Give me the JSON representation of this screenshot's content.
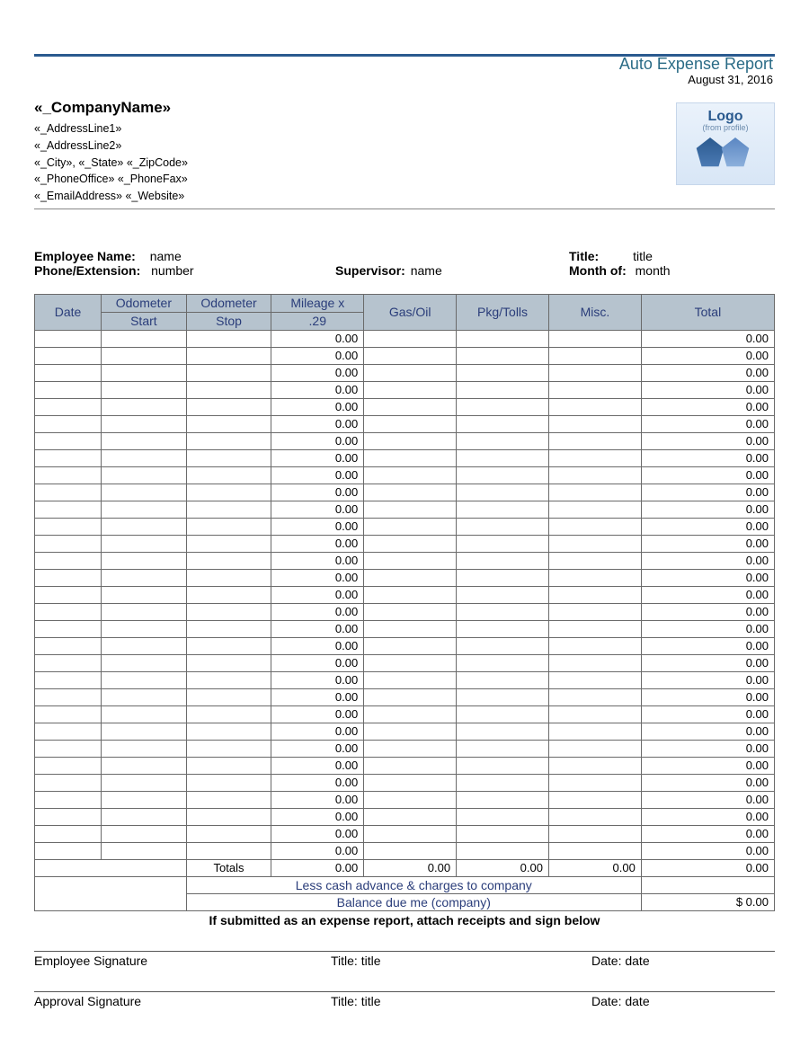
{
  "header": {
    "title": "Auto Expense Report",
    "date": "August 31, 2016",
    "title_color": "#2a6b86",
    "rule_color": "#2a5a8f"
  },
  "company": {
    "name": "«_CompanyName»",
    "address1": "«_AddressLine1»",
    "address2": "«_AddressLine2»",
    "city_state_zip": "«_City», «_State» «_ZipCode»",
    "phones": "«_PhoneOffice» «_PhoneFax»",
    "email_web": "«_EmailAddress» «_Website»"
  },
  "logo": {
    "text": "Logo",
    "subtext": "(from profile)"
  },
  "info": {
    "employee_name_label": "Employee Name:",
    "employee_name": "name",
    "phone_ext_label": "Phone/Extension:",
    "phone_ext": "number",
    "supervisor_label": "Supervisor:",
    "supervisor": "name",
    "title_label": "Title:",
    "title": "title",
    "month_label": "Month of:",
    "month": "month"
  },
  "table": {
    "columns": [
      "Date",
      "Odometer Start",
      "Odometer Stop",
      "Mileage x .29",
      "Gas/Oil",
      "Pkg/Tolls",
      "Misc.",
      "Total"
    ],
    "header_bg": "#b6c3ce",
    "header_fg": "#2a3d7a",
    "border_color": "#6a6a6a",
    "col_widths_pct": [
      9.0,
      11.5,
      11.5,
      12.5,
      12.5,
      12.5,
      12.5,
      18.0
    ],
    "row_count": 31,
    "mileage_default": "0.00",
    "total_default": "0.00",
    "totals_label": "Totals",
    "totals_values": [
      "0.00",
      "0.00",
      "0.00",
      "0.00",
      "0.00"
    ],
    "less_cash_label": "Less cash advance & charges to company",
    "balance_label": "Balance due me (company)",
    "balance_value": "$   0.00"
  },
  "instruction": "If submitted as an expense report, attach receipts and sign below",
  "signatures": {
    "emp_label": "Employee Signature",
    "app_label": "Approval Signature",
    "title_label": "Title:",
    "title_value": "title",
    "date_label": "Date:",
    "date_value": "date"
  }
}
